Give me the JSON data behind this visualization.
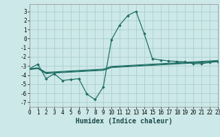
{
  "xlabel": "Humidex (Indice chaleur)",
  "background_color": "#cde8e8",
  "grid_color": "#aacece",
  "line_color": "#1e6e64",
  "xlim": [
    0,
    23
  ],
  "ylim": [
    -7.5,
    3.8
  ],
  "yticks": [
    -7,
    -6,
    -5,
    -4,
    -3,
    -2,
    -1,
    0,
    1,
    2,
    3
  ],
  "xticks": [
    0,
    1,
    2,
    3,
    4,
    5,
    6,
    7,
    8,
    9,
    10,
    11,
    12,
    13,
    14,
    15,
    16,
    17,
    18,
    19,
    20,
    21,
    22,
    23
  ],
  "main_y": [
    -3.3,
    -2.8,
    -4.4,
    -3.85,
    -4.6,
    -4.5,
    -4.4,
    -6.1,
    -6.7,
    -5.3,
    -0.1,
    1.5,
    2.55,
    3.0,
    0.55,
    -2.2,
    -2.35,
    -2.45,
    -2.5,
    -2.55,
    -2.75,
    -2.75,
    -2.62,
    -2.52
  ],
  "smooth_lines": [
    [
      -3.3,
      -3.2,
      -3.7,
      -3.65,
      -3.6,
      -3.55,
      -3.5,
      -3.45,
      -3.4,
      -3.35,
      -3.05,
      -3.0,
      -2.95,
      -2.9,
      -2.85,
      -2.8,
      -2.75,
      -2.7,
      -2.65,
      -2.6,
      -2.55,
      -2.5,
      -2.45,
      -2.4
    ],
    [
      -3.35,
      -3.25,
      -3.78,
      -3.72,
      -3.67,
      -3.62,
      -3.57,
      -3.52,
      -3.47,
      -3.42,
      -3.12,
      -3.07,
      -3.02,
      -2.97,
      -2.92,
      -2.87,
      -2.82,
      -2.77,
      -2.72,
      -2.67,
      -2.62,
      -2.57,
      -2.52,
      -2.47
    ],
    [
      -3.4,
      -3.3,
      -3.85,
      -3.78,
      -3.73,
      -3.68,
      -3.63,
      -3.58,
      -3.53,
      -3.48,
      -3.18,
      -3.13,
      -3.08,
      -3.03,
      -2.98,
      -2.93,
      -2.88,
      -2.83,
      -2.78,
      -2.73,
      -2.68,
      -2.63,
      -2.58,
      -2.53
    ]
  ]
}
